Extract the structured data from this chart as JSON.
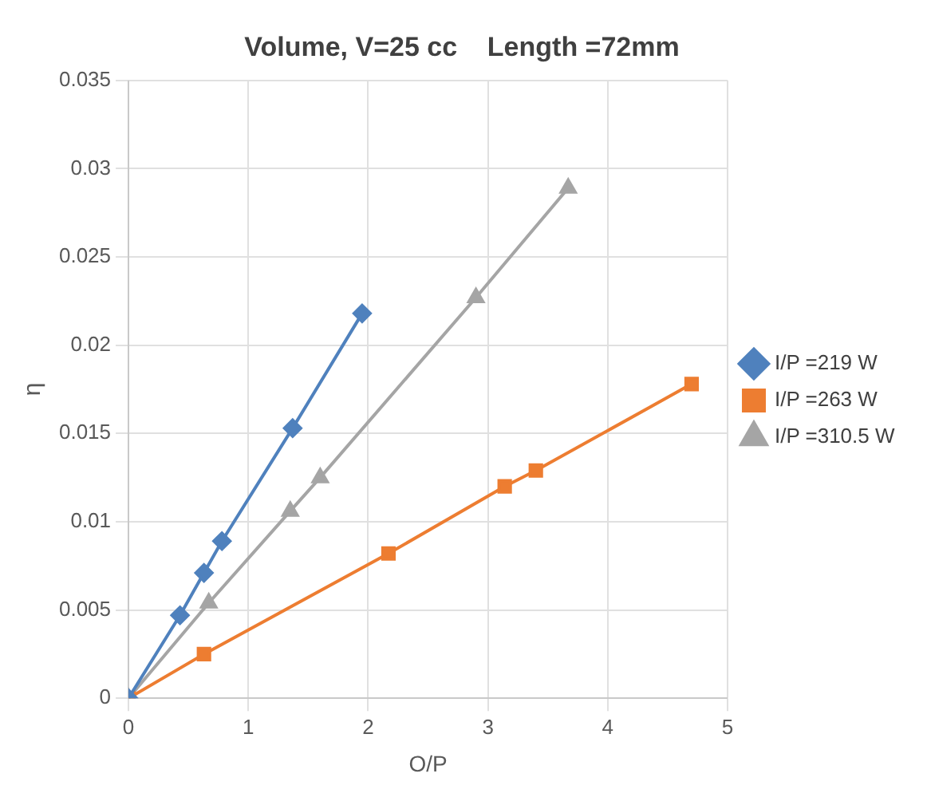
{
  "chart_data": {
    "type": "line",
    "title": "Volume, V=25 cc    Length =72mm",
    "xlabel": "O/P",
    "ylabel": "η",
    "xlim": [
      0,
      5
    ],
    "xticks": [
      0,
      1,
      2,
      3,
      4,
      5
    ],
    "ylim": [
      0,
      0.035
    ],
    "yticks": [
      0,
      0.005,
      0.01,
      0.015,
      0.02,
      0.025,
      0.03,
      0.035
    ],
    "grid": true,
    "legend": "right",
    "series": [
      {
        "name": "I/P =219 W",
        "color": "#4f81bd",
        "marker": "diamond",
        "x": [
          0,
          0.43,
          0.63,
          0.78,
          1.37,
          1.95
        ],
        "values": [
          0,
          0.0047,
          0.0071,
          0.0089,
          0.0153,
          0.0218
        ]
      },
      {
        "name": "I/P =263 W",
        "color": "#ed7d31",
        "marker": "square",
        "x": [
          0,
          0.63,
          2.17,
          3.14,
          3.4,
          4.7
        ],
        "values": [
          0,
          0.0025,
          0.0082,
          0.012,
          0.0129,
          0.0178
        ]
      },
      {
        "name": "I/P =310.5 W",
        "color": "#a5a5a5",
        "marker": "triangle",
        "x": [
          0,
          0.67,
          1.35,
          1.6,
          2.9,
          3.67
        ],
        "values": [
          0,
          0.0054,
          0.0106,
          0.0125,
          0.0227,
          0.0289
        ]
      }
    ]
  }
}
